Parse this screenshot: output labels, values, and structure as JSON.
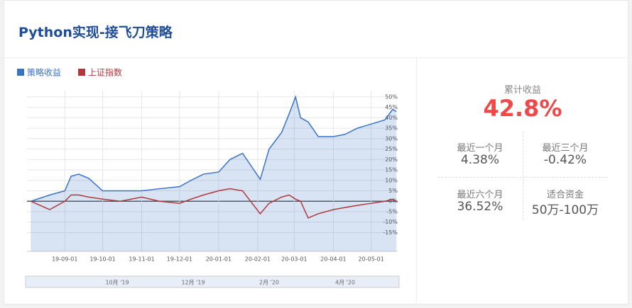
{
  "header": {
    "title": "Python实现-接飞刀策略"
  },
  "chart_data": {
    "type": "line",
    "x": [
      "19-08-05",
      "19-08-20",
      "19-09-01",
      "19-09-06",
      "19-09-12",
      "19-09-20",
      "19-10-01",
      "19-10-15",
      "19-11-01",
      "19-11-15",
      "19-12-01",
      "19-12-10",
      "19-12-20",
      "20-01-01",
      "20-01-10",
      "20-01-20",
      "20-02-03",
      "20-02-10",
      "20-02-20",
      "20-02-26",
      "20-03-02",
      "20-03-06",
      "20-03-12",
      "20-03-20",
      "20-04-01",
      "20-04-10",
      "20-04-20",
      "20-05-01",
      "20-05-12",
      "20-05-18",
      "20-05-21"
    ],
    "series": [
      {
        "name": "策略收益",
        "color": "#3a74c4",
        "values": [
          0,
          3,
          5,
          12,
          13,
          11,
          5,
          5,
          5,
          6,
          7,
          10,
          13,
          14,
          20,
          23,
          10.5,
          25,
          33,
          42,
          50,
          40,
          38,
          31,
          31,
          32,
          35,
          37,
          39,
          44,
          43
        ]
      },
      {
        "name": "上证指数",
        "color": "#b0383c",
        "values": [
          0,
          -4,
          0,
          3,
          3,
          2,
          1,
          0,
          2,
          0,
          -1,
          1,
          3,
          5,
          6,
          5,
          -6,
          -1,
          2,
          3,
          1,
          0,
          -8,
          -6,
          -4,
          -3,
          -2,
          -1,
          0,
          1,
          0
        ]
      }
    ],
    "xlim": [
      "19-08-02",
      "20-05-22"
    ],
    "xticks": [
      "19-09-01",
      "19-10-01",
      "19-11-01",
      "19-12-01",
      "20-01-01",
      "20-02-01",
      "20-03-01",
      "20-04-01",
      "20-05-01"
    ],
    "ylim": [
      -24,
      53
    ],
    "yticks": [
      {
        "value": 50,
        "label": "50%"
      },
      {
        "value": 45,
        "label": "45%"
      },
      {
        "value": 40,
        "label": "40%"
      },
      {
        "value": 35,
        "label": "35%"
      },
      {
        "value": 30,
        "label": "30%"
      },
      {
        "value": 25,
        "label": "25%"
      },
      {
        "value": 20,
        "label": "20%"
      },
      {
        "value": 15,
        "label": "15%"
      },
      {
        "value": 10,
        "label": "10%"
      },
      {
        "value": 5,
        "label": "5%"
      },
      {
        "value": 0,
        "label": "0%"
      },
      {
        "value": -5,
        "label": "-5%"
      },
      {
        "value": -10,
        "label": "-10%"
      },
      {
        "value": -15,
        "label": "-15%"
      }
    ],
    "grid": true
  },
  "navigator": {
    "labels": [
      "10月 '19",
      "12月 '19",
      "2月 '20",
      "4月 '20"
    ]
  },
  "stats": {
    "total": {
      "label": "累计收益",
      "value": "42.8%"
    },
    "items": [
      {
        "label": "最近一个月",
        "value": "4.38%"
      },
      {
        "label": "最近三个月",
        "value": "-0.42%"
      },
      {
        "label": "最近六个月",
        "value": "36.52%"
      },
      {
        "label": "适合资金",
        "value": "50万-100万"
      }
    ]
  }
}
